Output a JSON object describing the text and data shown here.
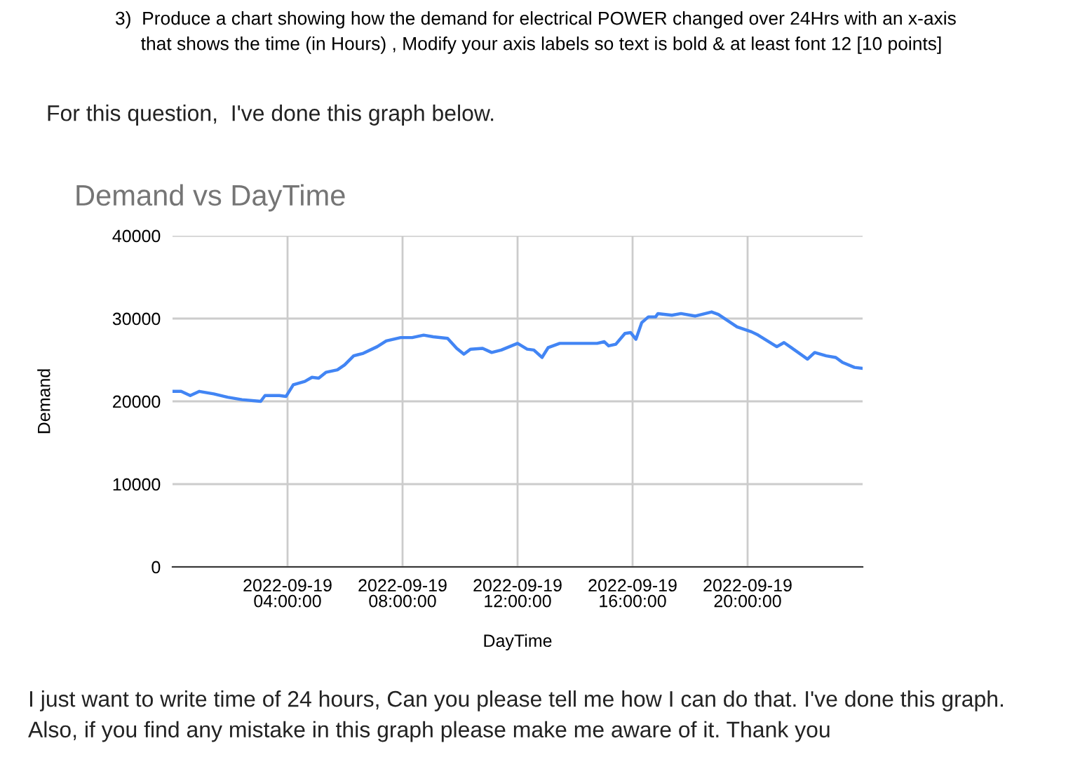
{
  "chart_data": {
    "type": "line",
    "title": "Demand vs DayTime",
    "xlabel": "DayTime",
    "ylabel": "Demand",
    "annotations": [
      "3)  Produce a chart showing how the demand for electrical POWER changed over 24Hrs with an x-axis\n     that shows the time (in Hours) , Modify your axis labels so text is bold & at least font 12 [10 points]",
      "For this question,  I've done this graph below.",
      "I just want to write time of 24 hours, Can you please tell me how I can do that. I've done this graph.\nAlso, if you find any mistake in this graph please make me aware of it. Thank you"
    ],
    "x": [
      "2022-09-19T00:00",
      "2022-09-19T00:18",
      "2022-09-19T00:37",
      "2022-09-19T00:56",
      "2022-09-19T01:26",
      "2022-09-19T01:55",
      "2022-09-19T02:25",
      "2022-09-19T03:04",
      "2022-09-19T03:13",
      "2022-09-19T03:43",
      "2022-09-19T03:57",
      "2022-09-19T04:12",
      "2022-09-19T04:36",
      "2022-09-19T04:51",
      "2022-09-19T05:05",
      "2022-09-19T05:20",
      "2022-09-19T05:44",
      "2022-09-19T05:59",
      "2022-09-19T06:18",
      "2022-09-19T06:38",
      "2022-09-19T07:07",
      "2022-09-19T07:26",
      "2022-09-19T07:56",
      "2022-09-19T08:20",
      "2022-09-19T08:44",
      "2022-09-19T09:04",
      "2022-09-19T09:34",
      "2022-09-19T09:53",
      "2022-09-19T10:08",
      "2022-09-19T10:22",
      "2022-09-19T10:47",
      "2022-09-19T11:06",
      "2022-09-19T11:26",
      "2022-09-19T12:00",
      "2022-09-19T12:20",
      "2022-09-19T12:34",
      "2022-09-19T12:51",
      "2022-09-19T13:04",
      "2022-09-19T13:28",
      "2022-09-19T13:57",
      "2022-09-19T14:46",
      "2022-09-19T15:01",
      "2022-09-19T15:10",
      "2022-09-19T15:25",
      "2022-09-19T15:44",
      "2022-09-19T15:56",
      "2022-09-19T16:07",
      "2022-09-19T16:19",
      "2022-09-19T16:33",
      "2022-09-19T16:48",
      "2022-09-19T16:53",
      "2022-09-19T17:22",
      "2022-09-19T17:41",
      "2022-09-19T18:11",
      "2022-09-19T18:45",
      "2022-09-19T18:59",
      "2022-09-19T19:38",
      "2022-09-19T20:08",
      "2022-09-19T20:22",
      "2022-09-19T21:01",
      "2022-09-19T21:16",
      "2022-09-19T21:31",
      "2022-09-19T22:05",
      "2022-09-19T22:20",
      "2022-09-19T22:44",
      "2022-09-19T23:04",
      "2022-09-19T23:18",
      "2022-09-19T23:43",
      "2022-09-19T23:57"
    ],
    "series": [
      {
        "color": "#4285f4",
        "values": [
          21200,
          21200,
          20700,
          21200,
          20900,
          20500,
          20200,
          20000,
          20700,
          20700,
          20600,
          22000,
          22400,
          22900,
          22800,
          23500,
          23800,
          24400,
          25500,
          25800,
          26600,
          27300,
          27700,
          27700,
          28000,
          27800,
          27600,
          26400,
          25700,
          26300,
          26400,
          25900,
          26200,
          27000,
          26300,
          26200,
          25300,
          26500,
          27000,
          27000,
          27000,
          27200,
          26700,
          26900,
          28200,
          28300,
          27500,
          29500,
          30200,
          30200,
          30600,
          30400,
          30600,
          30300,
          30800,
          30500,
          29000,
          28400,
          28000,
          26600,
          27100,
          26500,
          25100,
          25900,
          25500,
          25300,
          24700,
          24100,
          24000
        ]
      }
    ],
    "xlim": [
      "2022-09-19T00:00",
      "2022-09-20T00:00"
    ],
    "xticks": [
      {
        "value": "2022-09-19T04:00",
        "label": "2022-09-19\n04:00:00"
      },
      {
        "value": "2022-09-19T08:00",
        "label": "2022-09-19\n08:00:00"
      },
      {
        "value": "2022-09-19T12:00",
        "label": "2022-09-19\n12:00:00"
      },
      {
        "value": "2022-09-19T16:00",
        "label": "2022-09-19\n16:00:00"
      },
      {
        "value": "2022-09-19T20:00",
        "label": "2022-09-19\n20:00:00"
      }
    ],
    "ylim": [
      0,
      40000
    ],
    "yticks": [
      0,
      10000,
      20000,
      30000,
      40000
    ],
    "grid": true,
    "legend": false,
    "marker": "none",
    "line_style": "solid"
  }
}
